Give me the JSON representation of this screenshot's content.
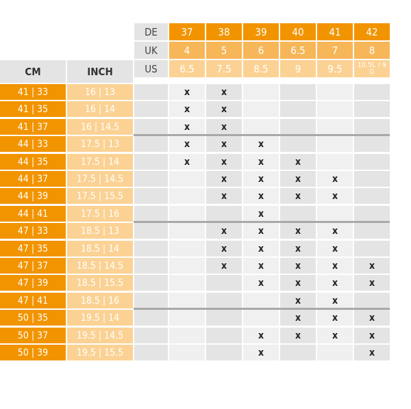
{
  "header": {
    "rows": [
      {
        "label": "DE",
        "values": [
          "37",
          "38",
          "39",
          "40",
          "41",
          "42"
        ]
      },
      {
        "label": "UK",
        "values": [
          "4",
          "5",
          "6",
          "6.5",
          "7",
          "8"
        ]
      },
      {
        "label": "US",
        "values": [
          "6.5",
          "7.5",
          "8.5",
          "9",
          "9.5",
          "10.5L / 9 G"
        ]
      }
    ],
    "cm_title": "CM",
    "inch_title": "INCH"
  },
  "rows": [
    {
      "cm": "41 | 33",
      "inch": "16 | 13",
      "marks": [
        "x",
        "x",
        "",
        "",
        "",
        ""
      ]
    },
    {
      "cm": "41 | 35",
      "inch": "16 | 14",
      "marks": [
        "x",
        "x",
        "",
        "",
        "",
        ""
      ]
    },
    {
      "cm": "41 | 37",
      "inch": "16 | 14.5",
      "marks": [
        "x",
        "x",
        "",
        "",
        "",
        ""
      ]
    },
    {
      "cm": "44 | 33",
      "inch": "17.5 | 13",
      "marks": [
        "x",
        "x",
        "x",
        "",
        "",
        ""
      ]
    },
    {
      "cm": "44 | 35",
      "inch": "17.5 | 14",
      "marks": [
        "x",
        "x",
        "x",
        "x",
        "",
        ""
      ]
    },
    {
      "cm": "44 | 37",
      "inch": "17.5 | 14.5",
      "marks": [
        "",
        "x",
        "x",
        "x",
        "x",
        ""
      ]
    },
    {
      "cm": "44 | 39",
      "inch": "17.5 | 15.5",
      "marks": [
        "",
        "x",
        "x",
        "x",
        "x",
        ""
      ]
    },
    {
      "cm": "44 | 41",
      "inch": "17.5 | 16",
      "marks": [
        "",
        "",
        "x",
        "",
        "",
        ""
      ]
    },
    {
      "cm": "47 | 33",
      "inch": "18.5 | 13",
      "marks": [
        "",
        "x",
        "x",
        "x",
        "x",
        ""
      ]
    },
    {
      "cm": "47 | 35",
      "inch": "18.5 | 14",
      "marks": [
        "",
        "x",
        "x",
        "x",
        "x",
        ""
      ]
    },
    {
      "cm": "47 | 37",
      "inch": "18.5 | 14.5",
      "marks": [
        "",
        "x",
        "x",
        "x",
        "x",
        "x"
      ]
    },
    {
      "cm": "47 | 39",
      "inch": "18.5 | 15.5",
      "marks": [
        "",
        "",
        "x",
        "x",
        "x",
        "x"
      ]
    },
    {
      "cm": "47 | 41",
      "inch": "18.5 | 16",
      "marks": [
        "",
        "",
        "",
        "x",
        "x",
        ""
      ]
    },
    {
      "cm": "50 | 35",
      "inch": "19.5 | 14",
      "marks": [
        "",
        "",
        "",
        "x",
        "x",
        "x"
      ]
    },
    {
      "cm": "50 | 37",
      "inch": "19.5 | 14.5",
      "marks": [
        "",
        "",
        "x",
        "x",
        "x",
        "x"
      ]
    },
    {
      "cm": "50 | 39",
      "inch": "19.5 | 15.5",
      "marks": [
        "",
        "",
        "x",
        "",
        "",
        "x"
      ]
    }
  ],
  "group_breaks_after_row": [
    2,
    7,
    12
  ],
  "colors": {
    "dark_orange": "#f29400",
    "mid_orange": "#f7b658",
    "light_orange": "#fbd294",
    "grey_dark": "#e4e4e4",
    "grey_light": "#f0f0f0",
    "separator": "#a8a8a8"
  }
}
